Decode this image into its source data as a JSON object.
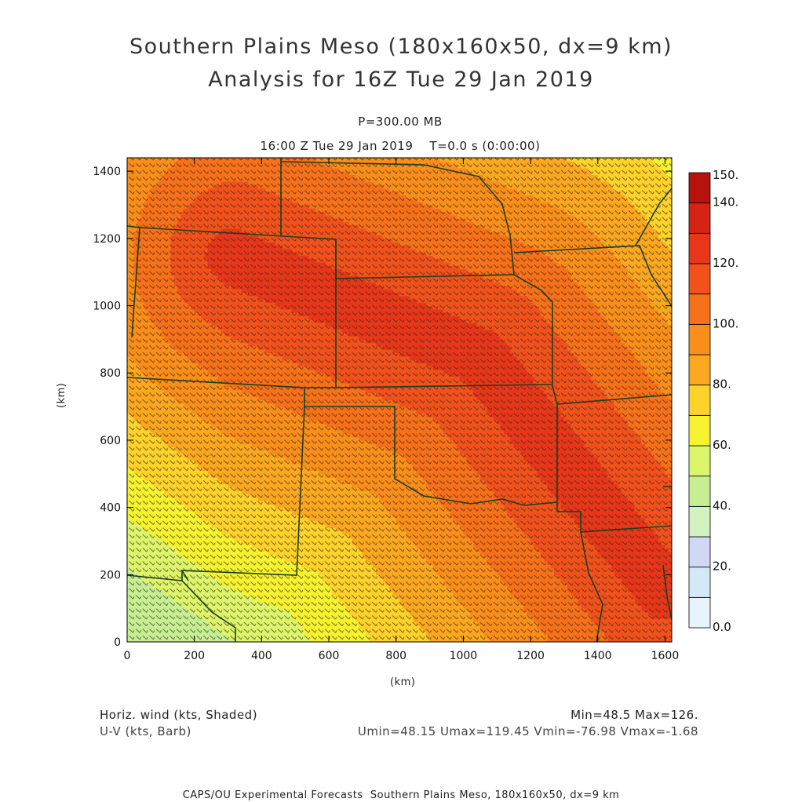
{
  "header": {
    "title_line1": "Southern Plains Meso (180x160x50, dx=9 km)",
    "title_line2": "Analysis for 16Z Tue 29 Jan 2019",
    "level": "P=300.00 MB",
    "time": "16:00 Z Tue 29 Jan 2019    T=0.0 s (0:00:00)"
  },
  "footer": {
    "field1": "Horiz. wind (kts, Shaded)",
    "field2": "U-V (kts, Barb)",
    "minmax": "Min=48.5 Max=126.",
    "stats": "Umin=48.15 Umax=119.45 Vmin=-76.98 Vmax=-1.68",
    "credit": "CAPS/OU Experimental Forecasts  Southern Plains Meso, 180x160x50, dx=9 km"
  },
  "chart_data": {
    "type": "heatmap",
    "xlabel": "(km)",
    "ylabel": "(km)",
    "xlim": [
      0,
      1620
    ],
    "ylim": [
      0,
      1440
    ],
    "x_ticks": [
      0,
      200,
      400,
      600,
      800,
      1000,
      1200,
      1400,
      1600
    ],
    "y_ticks": [
      0,
      200,
      400,
      600,
      800,
      1000,
      1200,
      1400
    ],
    "field_min": 48.5,
    "field_max": 126,
    "jet_core_axis_km": [
      [
        300,
        1150
      ],
      [
        1050,
        850
      ],
      [
        1600,
        150
      ]
    ],
    "colorbar": {
      "labels": [
        "0.0",
        "20.",
        "40.",
        "60.",
        "80.",
        "100.",
        "120.",
        "140.",
        "150."
      ],
      "levels": [
        0,
        10,
        20,
        30,
        40,
        50,
        60,
        70,
        80,
        90,
        100,
        110,
        120,
        130,
        140,
        150
      ],
      "colors": [
        "#e8f4fb",
        "#d4e8f6",
        "#d0d8f4",
        "#d2f2c0",
        "#c6ef94",
        "#dcf56a",
        "#f5f230",
        "#fdd22a",
        "#fba820",
        "#fa8e1a",
        "#f7701a",
        "#f2511c",
        "#e8361a",
        "#d52414",
        "#b8120e"
      ]
    }
  }
}
